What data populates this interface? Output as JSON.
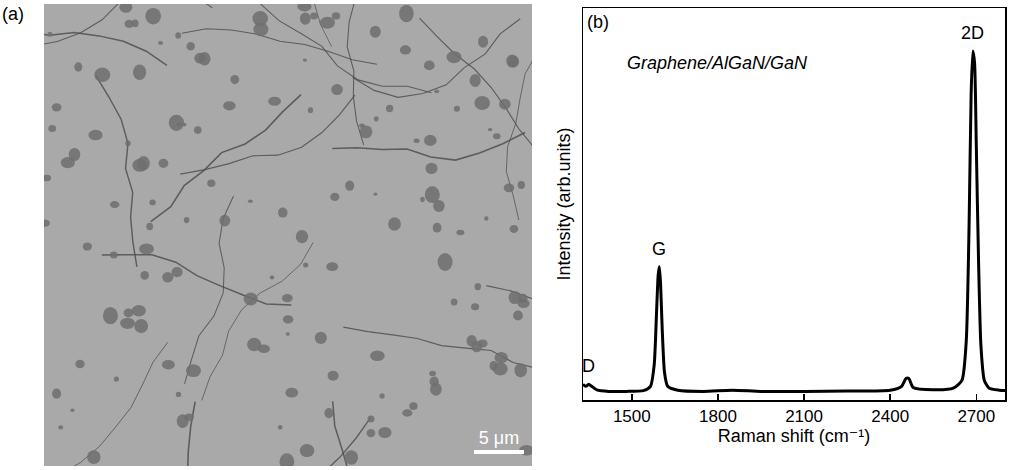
{
  "panel_a": {
    "label": "(a)",
    "scale_bar": "5 μm"
  },
  "chart_data": {
    "type": "line",
    "panel_label": "(b)",
    "annotations": [
      "Graphene/AlGaN/GaN"
    ],
    "x_label": "Raman shift (cm⁻¹)",
    "y_label": "Intensity (arb.units)",
    "x": [
      1330,
      1340,
      1350,
      1360,
      1380,
      1420,
      1480,
      1540,
      1565,
      1578,
      1586,
      1592,
      1596,
      1600,
      1606,
      1614,
      1625,
      1660,
      1750,
      1850,
      1950,
      2100,
      2250,
      2400,
      2440,
      2455,
      2465,
      2480,
      2550,
      2620,
      2650,
      2665,
      2675,
      2682,
      2688,
      2694,
      2700,
      2708,
      2716,
      2728,
      2745,
      2780,
      2800
    ],
    "values": [
      0.04,
      0.035,
      0.04,
      0.035,
      0.025,
      0.022,
      0.022,
      0.024,
      0.035,
      0.09,
      0.22,
      0.32,
      0.34,
      0.3,
      0.18,
      0.07,
      0.035,
      0.025,
      0.022,
      0.025,
      0.022,
      0.022,
      0.023,
      0.025,
      0.035,
      0.055,
      0.055,
      0.032,
      0.026,
      0.03,
      0.05,
      0.15,
      0.45,
      0.78,
      0.89,
      0.86,
      0.65,
      0.35,
      0.14,
      0.05,
      0.03,
      0.025,
      0.024
    ],
    "color": "#000000",
    "xlim": [
      1330,
      2800
    ],
    "xticks": [
      1500,
      1800,
      2100,
      2400,
      2700
    ],
    "ylim": [
      0,
      1
    ],
    "yticks": [],
    "tick_labels": "x",
    "grid": false,
    "peaks": [
      {
        "label": "D",
        "x": 1350,
        "y": 0.04
      },
      {
        "label": "G",
        "x": 1596,
        "y": 0.34
      },
      {
        "label": "2D",
        "x": 2688,
        "y": 0.89
      }
    ]
  }
}
